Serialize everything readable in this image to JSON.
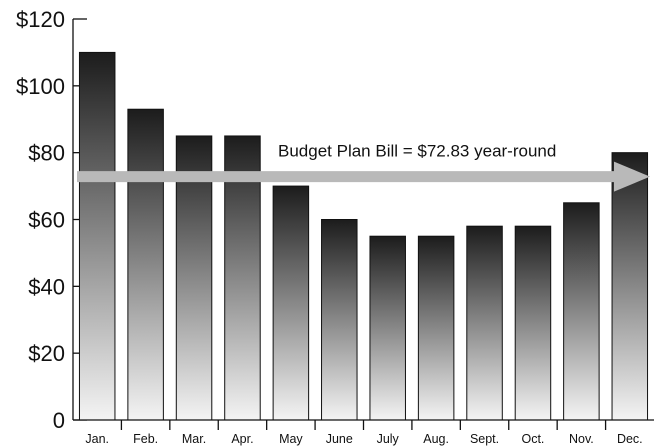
{
  "chart_data": {
    "type": "bar",
    "categories": [
      "Jan.",
      "Feb.",
      "Mar.",
      "Apr.",
      "May",
      "June",
      "July",
      "Aug.",
      "Sept.",
      "Oct.",
      "Nov.",
      "Dec."
    ],
    "values": [
      110,
      93,
      85,
      85,
      70,
      60,
      55,
      55,
      58,
      58,
      65,
      80
    ],
    "ylim": [
      0,
      120
    ],
    "yticks": [
      0,
      20,
      40,
      60,
      80,
      100,
      120
    ],
    "ytick_labels": [
      "0",
      "$20",
      "$40",
      "$60",
      "$80",
      "$100",
      "$120"
    ],
    "grid": false,
    "annotation": {
      "text": "Budget Plan Bill = $72.83 year-round",
      "value": 72.83
    },
    "colors": {
      "bar_top": "#1c1c1c",
      "bar_bottom": "#f4f4f4",
      "arrow": "#b9b9b9"
    }
  }
}
